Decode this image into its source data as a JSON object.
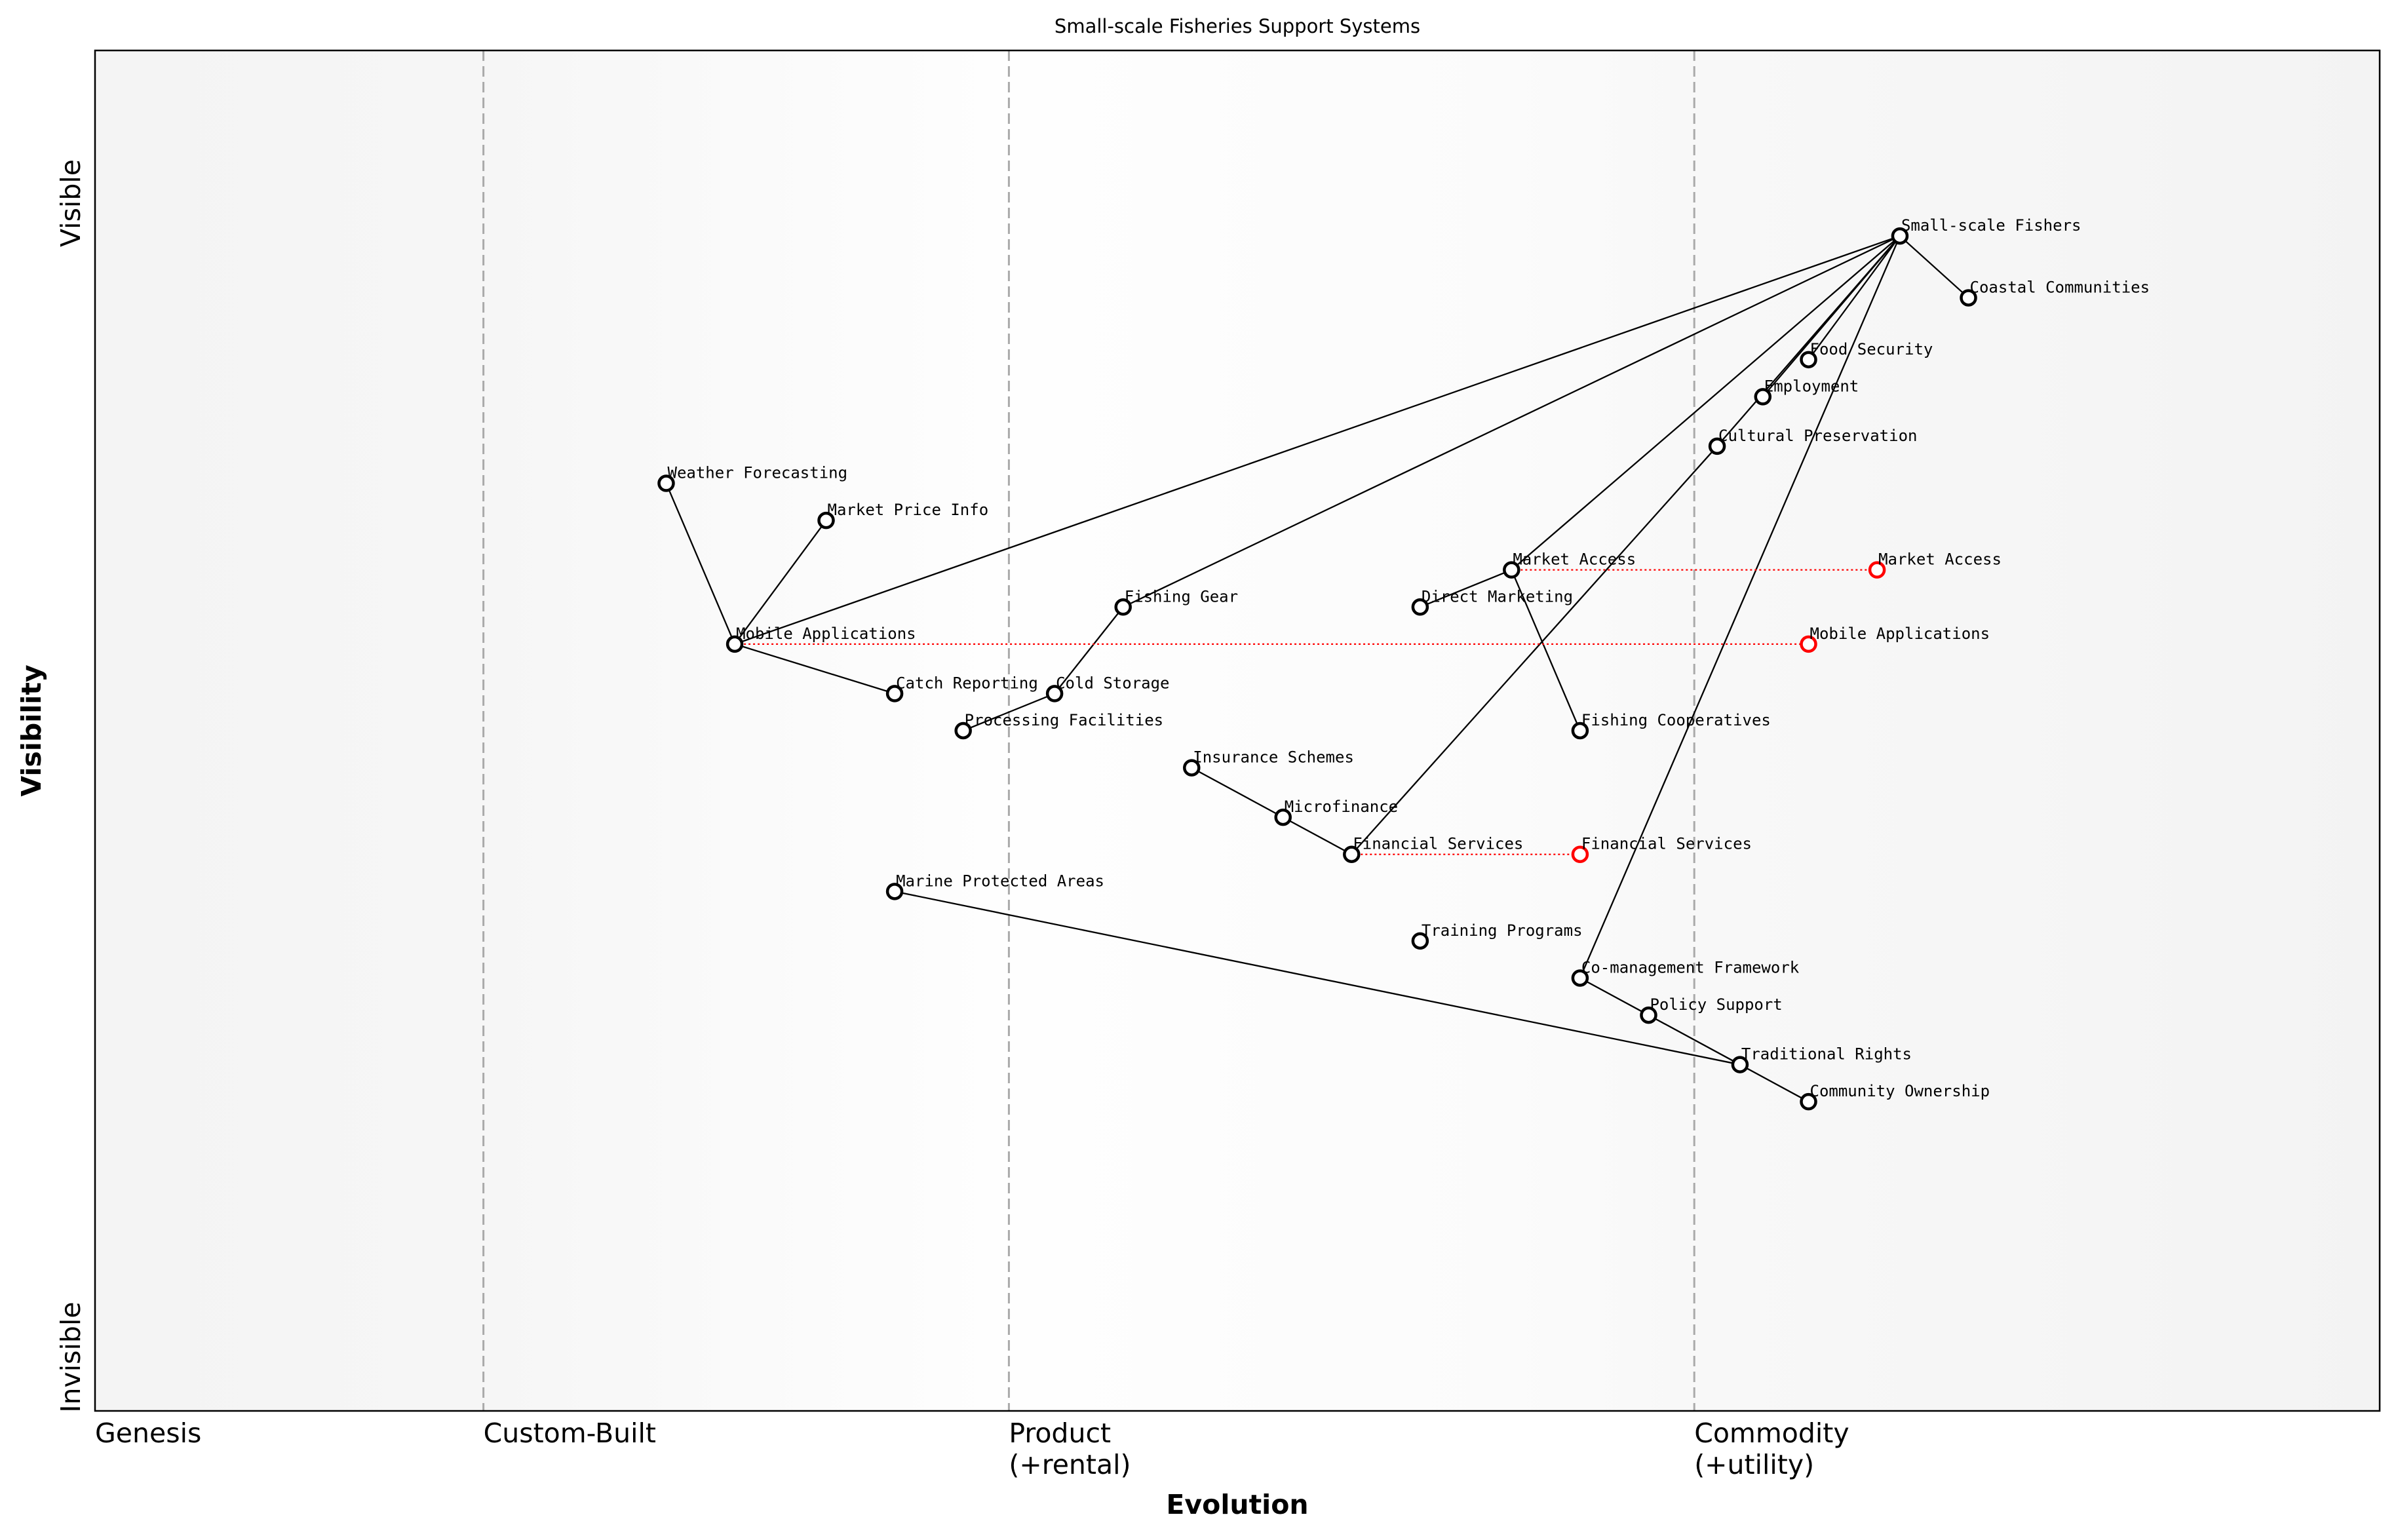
{
  "chart_data": {
    "type": "wardley-map",
    "title": "Small-scale Fisheries Support Systems",
    "xlabel": "Evolution",
    "ylabel": "Visibility",
    "xlim": [
      0,
      1
    ],
    "ylim": [
      0,
      1.1
    ],
    "grid": false,
    "stages": [
      {
        "label": "Genesis",
        "x": 0
      },
      {
        "label": "Custom-Built",
        "x": 0.17
      },
      {
        "label": "Product",
        "sub": "(+rental)",
        "x": 0.4
      },
      {
        "label": "Commodity",
        "sub": "(+utility)",
        "x": 0.7
      }
    ],
    "y_labels": {
      "top": "Visible",
      "bottom": "Invisible"
    },
    "colors": {
      "node": "#000000",
      "evolved": "#ff0000",
      "divider": "#aaaaaa"
    },
    "nodes": [
      {
        "name": "Small-scale Fishers",
        "evolution": 0.79,
        "visibility": 0.95
      },
      {
        "name": "Coastal Communities",
        "evolution": 0.82,
        "visibility": 0.9
      },
      {
        "name": "Food Security",
        "evolution": 0.75,
        "visibility": 0.85
      },
      {
        "name": "Employment",
        "evolution": 0.73,
        "visibility": 0.82
      },
      {
        "name": "Cultural Preservation",
        "evolution": 0.71,
        "visibility": 0.78
      },
      {
        "name": "Weather Forecasting",
        "evolution": 0.25,
        "visibility": 0.75
      },
      {
        "name": "Market Price Info",
        "evolution": 0.32,
        "visibility": 0.72
      },
      {
        "name": "Market Access",
        "evolution": 0.62,
        "visibility": 0.68
      },
      {
        "name": "Direct Marketing",
        "evolution": 0.58,
        "visibility": 0.65
      },
      {
        "name": "Fishing Gear",
        "evolution": 0.45,
        "visibility": 0.65
      },
      {
        "name": "Mobile Applications",
        "evolution": 0.28,
        "visibility": 0.62
      },
      {
        "name": "Catch Reporting",
        "evolution": 0.35,
        "visibility": 0.58
      },
      {
        "name": "Cold Storage",
        "evolution": 0.42,
        "visibility": 0.58
      },
      {
        "name": "Processing Facilities",
        "evolution": 0.38,
        "visibility": 0.55
      },
      {
        "name": "Fishing Cooperatives",
        "evolution": 0.65,
        "visibility": 0.55
      },
      {
        "name": "Insurance Schemes",
        "evolution": 0.48,
        "visibility": 0.52
      },
      {
        "name": "Microfinance",
        "evolution": 0.52,
        "visibility": 0.48
      },
      {
        "name": "Financial Services",
        "evolution": 0.55,
        "visibility": 0.45
      },
      {
        "name": "Marine Protected Areas",
        "evolution": 0.35,
        "visibility": 0.42
      },
      {
        "name": "Training Programs",
        "evolution": 0.58,
        "visibility": 0.38
      },
      {
        "name": "Co-management Framework",
        "evolution": 0.65,
        "visibility": 0.35
      },
      {
        "name": "Policy Support",
        "evolution": 0.68,
        "visibility": 0.32
      },
      {
        "name": "Traditional Rights",
        "evolution": 0.72,
        "visibility": 0.28
      },
      {
        "name": "Community Ownership",
        "evolution": 0.75,
        "visibility": 0.25
      }
    ],
    "links": [
      [
        "Small-scale Fishers",
        "Coastal Communities"
      ],
      [
        "Small-scale Fishers",
        "Food Security"
      ],
      [
        "Small-scale Fishers",
        "Employment"
      ],
      [
        "Small-scale Fishers",
        "Cultural Preservation"
      ],
      [
        "Small-scale Fishers",
        "Mobile Applications"
      ],
      [
        "Small-scale Fishers",
        "Fishing Gear"
      ],
      [
        "Small-scale Fishers",
        "Market Access"
      ],
      [
        "Small-scale Fishers",
        "Co-management Framework"
      ],
      [
        "Cultural Preservation",
        "Financial Services"
      ],
      [
        "Mobile Applications",
        "Weather Forecasting"
      ],
      [
        "Mobile Applications",
        "Market Price Info"
      ],
      [
        "Mobile Applications",
        "Catch Reporting"
      ],
      [
        "Fishing Gear",
        "Cold Storage"
      ],
      [
        "Cold Storage",
        "Processing Facilities"
      ],
      [
        "Market Access",
        "Direct Marketing"
      ],
      [
        "Market Access",
        "Fishing Cooperatives"
      ],
      [
        "Insurance Schemes",
        "Microfinance"
      ],
      [
        "Microfinance",
        "Financial Services"
      ],
      [
        "Marine Protected Areas",
        "Traditional Rights"
      ],
      [
        "Co-management Framework",
        "Policy Support"
      ],
      [
        "Policy Support",
        "Traditional Rights"
      ],
      [
        "Traditional Rights",
        "Community Ownership"
      ]
    ],
    "evolutions": [
      {
        "name": "Market Access",
        "from": 0.62,
        "to": 0.78,
        "visibility": 0.68
      },
      {
        "name": "Mobile Applications",
        "from": 0.28,
        "to": 0.75,
        "visibility": 0.62
      },
      {
        "name": "Financial Services",
        "from": 0.55,
        "to": 0.65,
        "visibility": 0.45
      }
    ]
  }
}
